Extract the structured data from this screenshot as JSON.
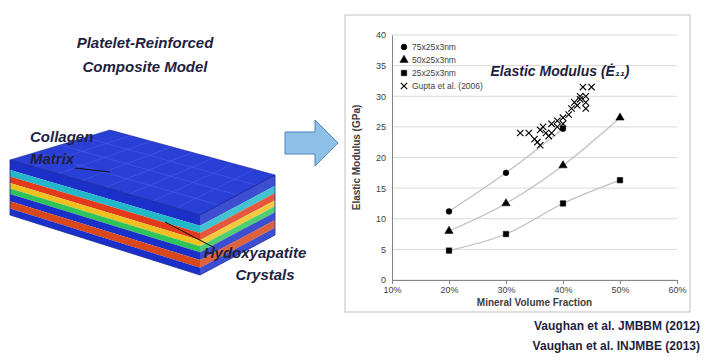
{
  "figure": {
    "model_title": [
      "Platelet-Reinforced",
      "Composite Model"
    ],
    "labels": [
      {
        "lines": [
          "Collagen",
          "Matrix"
        ]
      },
      {
        "lines": [
          "Hydoxyapatite",
          "Crystals"
        ]
      }
    ],
    "references": [
      "Vaughan et al. JMBBM (2012)",
      "Vaughan et al. INJMBE (2013)"
    ]
  },
  "chart_data": {
    "type": "scatter",
    "title": "Elastic Modulus (Ė₁₁)",
    "x_label": "Mineral Volume Fraction",
    "y_label": "Elastic Modulus (GPa)",
    "xlim": [
      10,
      60
    ],
    "xticks": [
      {
        "value": 10,
        "label": "10%"
      },
      {
        "value": 20,
        "label": "20%"
      },
      {
        "value": 30,
        "label": "30%"
      },
      {
        "value": 40,
        "label": "40%"
      },
      {
        "value": 50,
        "label": "50%"
      },
      {
        "value": 60,
        "label": "60%"
      }
    ],
    "ylim": [
      0,
      40
    ],
    "yticks": [
      0,
      5,
      10,
      15,
      20,
      25,
      30,
      35,
      40
    ],
    "grid": true,
    "legend": "upper left",
    "series": [
      {
        "name": "75x25x3nm",
        "color": "#000000",
        "marker": "circle",
        "line_style": "solid",
        "x": [
          20,
          30,
          40
        ],
        "values": [
          11.2,
          17.5,
          24.7
        ]
      },
      {
        "name": "50x25x3nm",
        "color": "#000000",
        "marker": "triangle",
        "line_style": "solid",
        "x": [
          20,
          30,
          40,
          50
        ],
        "values": [
          8.0,
          12.5,
          18.7,
          26.5
        ]
      },
      {
        "name": "25x25x3nm",
        "color": "#000000",
        "marker": "square",
        "line_style": "solid",
        "x": [
          20,
          30,
          40,
          50
        ],
        "values": [
          4.8,
          7.5,
          12.5,
          16.3
        ]
      },
      {
        "name": "Gupta et al. (2006)",
        "color": "#000000",
        "marker": "x",
        "line_style": "none",
        "x": [
          32.5,
          34,
          35,
          35.5,
          36,
          36,
          36.5,
          37,
          37.5,
          38,
          38,
          39,
          39,
          40,
          40,
          41,
          41.5,
          42,
          42.5,
          43,
          43,
          43.5,
          44,
          44,
          44,
          45
        ],
        "values": [
          24,
          24,
          23,
          22.5,
          22,
          24.5,
          25,
          24,
          23.5,
          24,
          25.5,
          26,
          25,
          25.5,
          26.5,
          27,
          28,
          29,
          28.5,
          30,
          29.5,
          31.5,
          30,
          29,
          28,
          31.5
        ]
      }
    ]
  }
}
